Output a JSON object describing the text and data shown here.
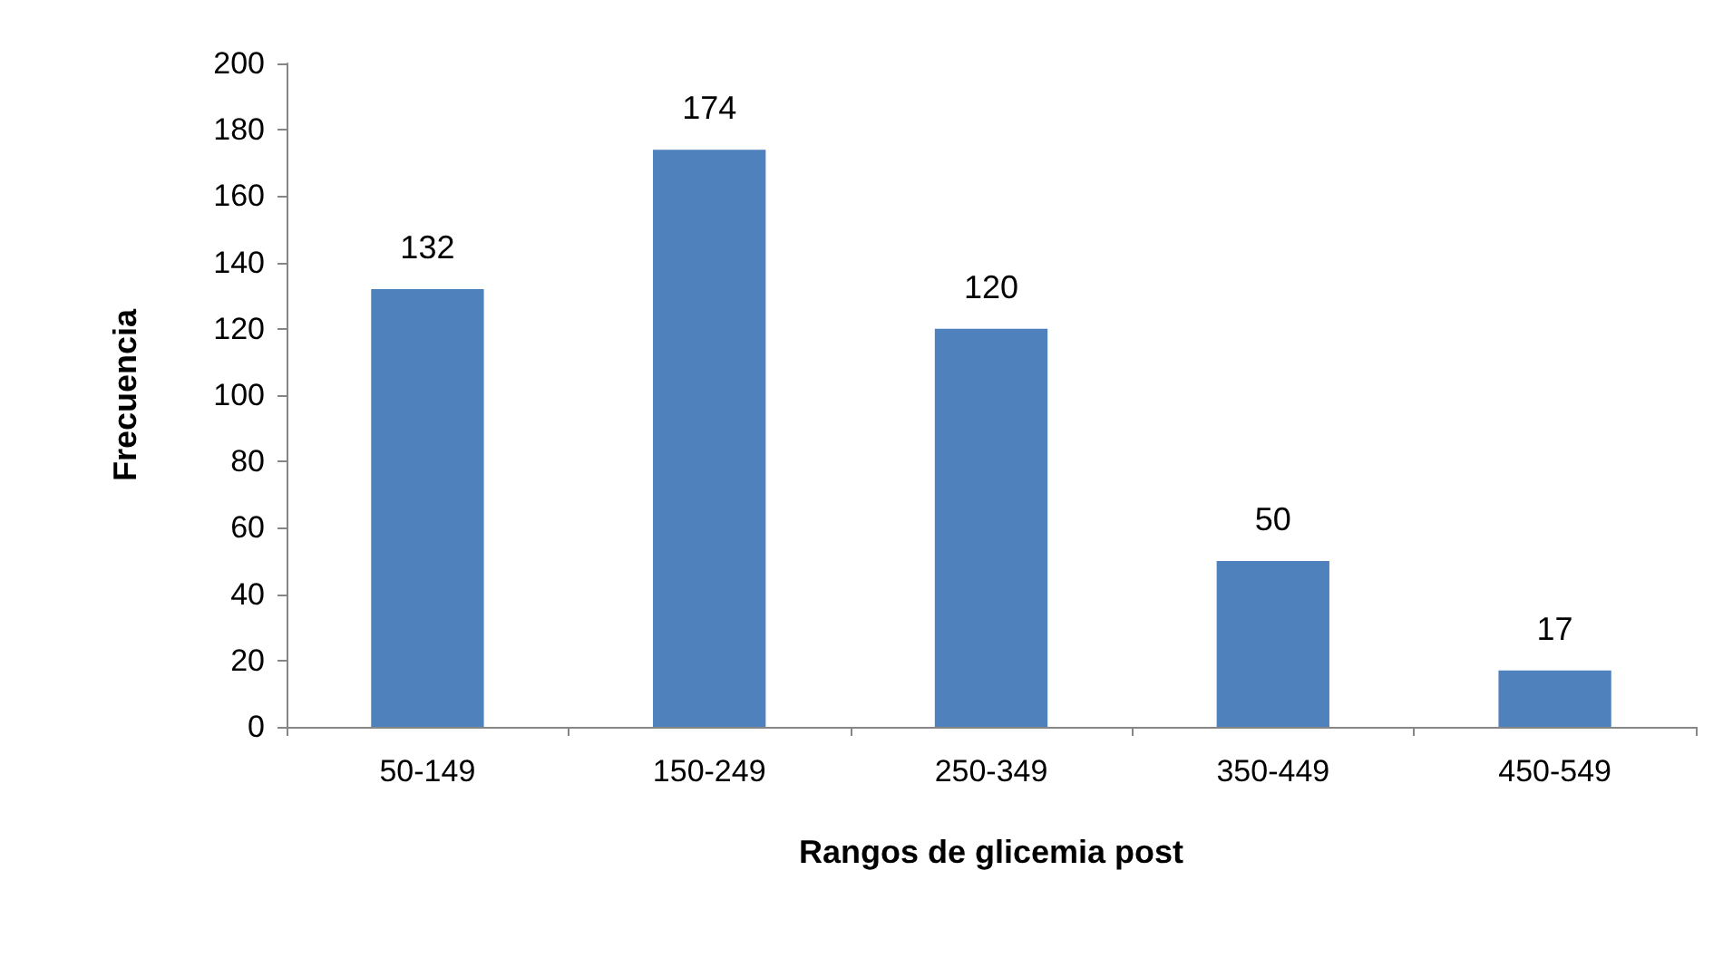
{
  "chart_data": {
    "type": "bar",
    "xlabel": "Rangos de glicemia post",
    "ylabel": "Frecuencia",
    "categories": [
      "50-149",
      "150-249",
      "250-349",
      "350-449",
      "450-549"
    ],
    "values": [
      132,
      174,
      120,
      50,
      17
    ],
    "color": "#4f81bd",
    "ylim": [
      0,
      200
    ],
    "yticks": [
      0,
      20,
      40,
      60,
      80,
      100,
      120,
      140,
      160,
      180,
      200
    ],
    "grid": false,
    "data_labels": true
  }
}
